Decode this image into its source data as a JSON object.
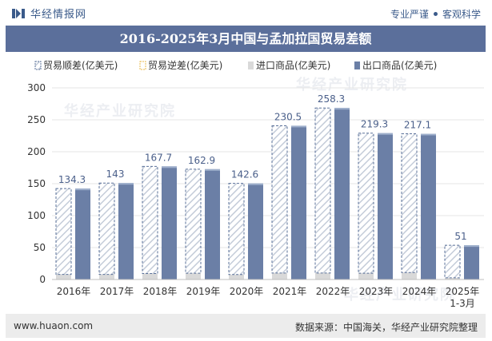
{
  "header": {
    "brand": "华经情报网",
    "tagline_left": "专业严谨",
    "tagline_right": "客观科学"
  },
  "watermark_text": "华经产业研究院",
  "chart_data": {
    "type": "bar",
    "title": "2016-2025年3月中国与孟加拉国贸易差额",
    "categories": [
      "2016年",
      "2017年",
      "2018年",
      "2019年",
      "2020年",
      "2021年",
      "2022年",
      "2023年",
      "2024年",
      "2025年1-3月"
    ],
    "series": [
      {
        "name": "贸易顺差(亿美元)",
        "values": [
          134.3,
          143,
          167.7,
          162.9,
          142.6,
          230.5,
          258.3,
          219.3,
          217.1,
          51
        ]
      },
      {
        "name": "贸易逆差(亿美元)",
        "values": [
          0,
          0,
          0,
          0,
          0,
          0,
          0,
          0,
          0,
          0
        ]
      },
      {
        "name": "进口商品(亿美元)",
        "values": [
          8.0,
          8.0,
          9.4,
          9.8,
          7.8,
          10.2,
          10.2,
          9.8,
          11.0,
          2.6
        ]
      },
      {
        "name": "出口商品(亿美元)",
        "values": [
          142.3,
          151.0,
          177.1,
          172.7,
          150.4,
          240.7,
          268.5,
          229.1,
          228.1,
          53.6
        ]
      }
    ],
    "data_labels": [
      "134.3",
      "143",
      "167.7",
      "162.9",
      "142.6",
      "230.5",
      "258.3",
      "219.3",
      "217.1",
      "51"
    ],
    "ylim": [
      0,
      300
    ],
    "yticks": [
      0,
      50,
      100,
      150,
      200,
      250,
      300
    ],
    "legend_position": "top",
    "colors": {
      "surplus_stroke": "#5a7099",
      "surplus_hatch": "#c4ccd9",
      "deficit": "#e8b84a",
      "import": "#d9d9d9",
      "export": "#6b7fa6"
    }
  },
  "footer": {
    "website": "www.huaon.com",
    "source": "数据来源：中国海关，华经产业研究院整理"
  }
}
